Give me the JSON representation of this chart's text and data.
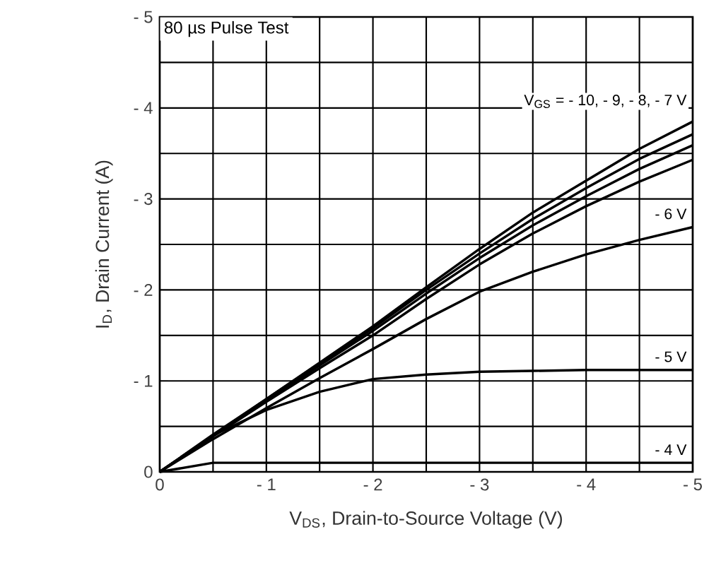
{
  "chart_data": {
    "type": "line",
    "xlabel": "V$_{DS}$, Drain-to-Source Voltage (V)",
    "ylabel": "I$_{D}$, Drain Current (A)",
    "x": [
      0,
      -0.5,
      -1,
      -1.5,
      -2,
      -2.5,
      -3,
      -3.5,
      -4,
      -4.5,
      -5
    ],
    "series": [
      {
        "color": "#000000",
        "values": [
          0,
          -0.41,
          -0.8,
          -1.2,
          -1.6,
          -2.03,
          -2.45,
          -2.85,
          -3.2,
          -3.55,
          -3.85
        ]
      },
      {
        "color": "#000000",
        "values": [
          0,
          -0.4,
          -0.8,
          -1.19,
          -1.58,
          -2.0,
          -2.4,
          -2.78,
          -3.12,
          -3.44,
          -3.71
        ]
      },
      {
        "color": "#000000",
        "values": [
          0,
          -0.4,
          -0.78,
          -1.17,
          -1.55,
          -1.96,
          -2.35,
          -2.71,
          -3.03,
          -3.33,
          -3.59
        ]
      },
      {
        "color": "#000000",
        "values": [
          0,
          -0.39,
          -0.77,
          -1.14,
          -1.5,
          -1.9,
          -2.28,
          -2.62,
          -2.92,
          -3.19,
          -3.43
        ]
      },
      {
        "name": "- 6 V",
        "color": "#000000",
        "values": [
          0,
          -0.36,
          -0.7,
          -1.03,
          -1.35,
          -1.68,
          -1.98,
          -2.2,
          -2.39,
          -2.55,
          -2.69
        ]
      },
      {
        "name": "- 5 V",
        "color": "#000000",
        "values": [
          0,
          -0.4,
          -0.68,
          -0.88,
          -1.02,
          -1.07,
          -1.1,
          -1.11,
          -1.12,
          -1.12,
          -1.12
        ]
      },
      {
        "name": "- 4 V",
        "color": "#000000",
        "values": [
          0,
          -0.1,
          -0.1,
          -0.1,
          -0.1,
          -0.1,
          -0.1,
          -0.1,
          -0.1,
          -0.1,
          -0.1
        ]
      }
    ],
    "xlim": [
      0,
      -5
    ],
    "ylim": [
      0,
      -5
    ],
    "xticks": [
      0,
      {
        "value": -1,
        "label": "- 1"
      },
      {
        "value": -2,
        "label": "- 2"
      },
      {
        "value": -3,
        "label": "- 3"
      },
      {
        "value": -4,
        "label": "- 4"
      },
      {
        "value": -5,
        "label": "- 5"
      }
    ],
    "yticks": [
      0,
      {
        "value": -1,
        "label": "- 1"
      },
      {
        "value": -2,
        "label": "- 2"
      },
      {
        "value": -3,
        "label": "- 3"
      },
      {
        "value": -4,
        "label": "- 4"
      },
      {
        "value": -5,
        "label": "- 5"
      }
    ],
    "grid": true,
    "legend": "right",
    "marker": "none",
    "line_style": "solid",
    "annotations": [
      "80 µs Pulse Test",
      "V$_{GS}$ = - 10, - 9, - 8, - 7 V"
    ]
  }
}
